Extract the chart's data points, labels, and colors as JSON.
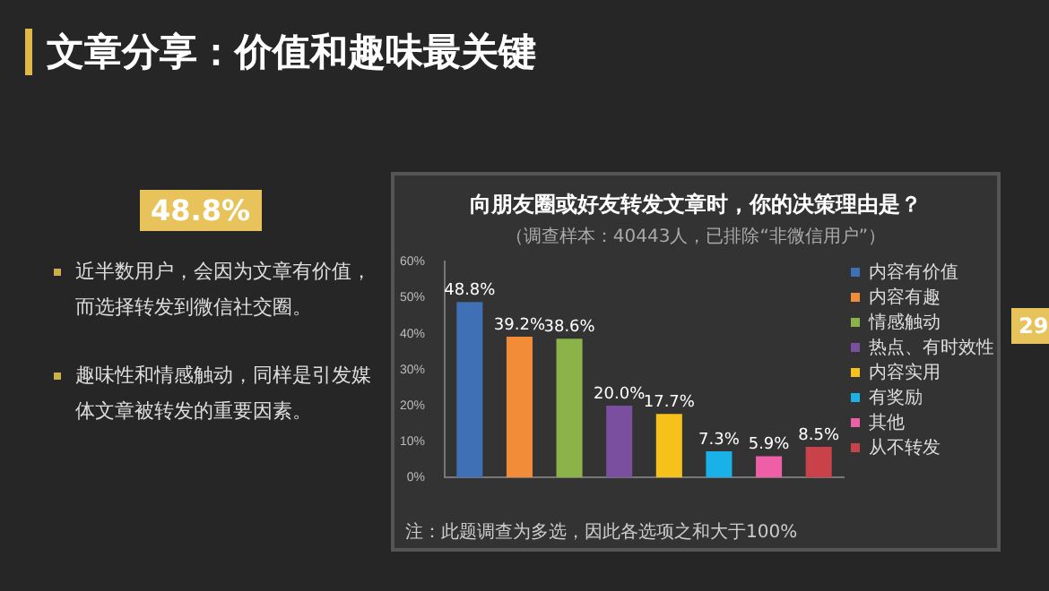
{
  "chart_data": {
    "type": "bar",
    "title": "文章分享：价值和趣味最关键",
    "subtitle": "向朋友圈或好友转发文章时，你的决策理由是？",
    "categories": [
      null,
      null,
      null,
      null,
      null,
      null,
      null,
      null
    ],
    "series": [
      {
        "name": "内容有价值",
        "color": "#3f6fb5",
        "values": [
          48.8,
          null,
          null,
          null,
          null,
          null,
          null,
          null
        ],
        "value_labels": [
          "48.8%",
          null,
          null,
          null,
          null,
          null,
          null,
          null
        ]
      },
      {
        "name": "内容有趣",
        "color": "#f28c38",
        "values": [
          null,
          39.2,
          null,
          null,
          null,
          null,
          null,
          null
        ],
        "value_labels": [
          null,
          "39.2%",
          null,
          null,
          null,
          null,
          null,
          null
        ]
      },
      {
        "name": "情感触动",
        "color": "#8bb34a",
        "values": [
          null,
          null,
          38.6,
          null,
          null,
          null,
          null,
          null
        ],
        "value_labels": [
          null,
          null,
          "38.6%",
          null,
          null,
          null,
          null,
          null
        ]
      },
      {
        "name": "热点、有时效性",
        "color": "#7b4fa0",
        "values": [
          null,
          null,
          null,
          20.0,
          null,
          null,
          null,
          null
        ],
        "value_labels": [
          null,
          null,
          null,
          "20.0%",
          null,
          null,
          null,
          null
        ]
      },
      {
        "name": "内容实用",
        "color": "#f5c11a",
        "values": [
          null,
          null,
          null,
          null,
          17.7,
          null,
          null,
          null
        ],
        "value_labels": [
          null,
          null,
          null,
          null,
          "17.7%",
          null,
          null,
          null
        ]
      },
      {
        "name": "有奖励",
        "color": "#1ab0e8",
        "values": [
          null,
          null,
          null,
          null,
          null,
          7.3,
          null,
          null
        ],
        "value_labels": [
          null,
          null,
          null,
          null,
          null,
          "7.3%",
          null,
          null
        ]
      },
      {
        "name": "其他",
        "color": "#ee5fa7",
        "values": [
          null,
          null,
          null,
          null,
          null,
          null,
          5.9,
          null
        ],
        "value_labels": [
          null,
          null,
          null,
          null,
          null,
          null,
          "5.9%",
          null
        ]
      },
      {
        "name": "从不转发",
        "color": "#c9424a",
        "values": [
          null,
          null,
          null,
          null,
          null,
          null,
          null,
          8.5
        ],
        "value_labels": [
          null,
          null,
          null,
          null,
          null,
          null,
          null,
          "8.5%"
        ]
      }
    ],
    "ylim": [
      0,
      60
    ],
    "yticks": [
      {
        "value": 0,
        "label": "0%"
      },
      {
        "value": 10,
        "label": "10%"
      },
      {
        "value": 20,
        "label": "20%"
      },
      {
        "value": 30,
        "label": "30%"
      },
      {
        "value": 40,
        "label": "40%"
      },
      {
        "value": 50,
        "label": "50%"
      },
      {
        "value": 60,
        "label": "60%"
      }
    ],
    "legend": "right",
    "annotations": [
      "（调查样本：40443人，已排除“非微信用户”）",
      "48.8%",
      "近半数用户，会因为文章有价值，而选择转发到微信社交圈。",
      "趣味性和情感触动，同样是引发媒体文章被转发的重要因素。",
      "注：此题调查为多选，因此各选项之和大于100%",
      "29"
    ]
  }
}
